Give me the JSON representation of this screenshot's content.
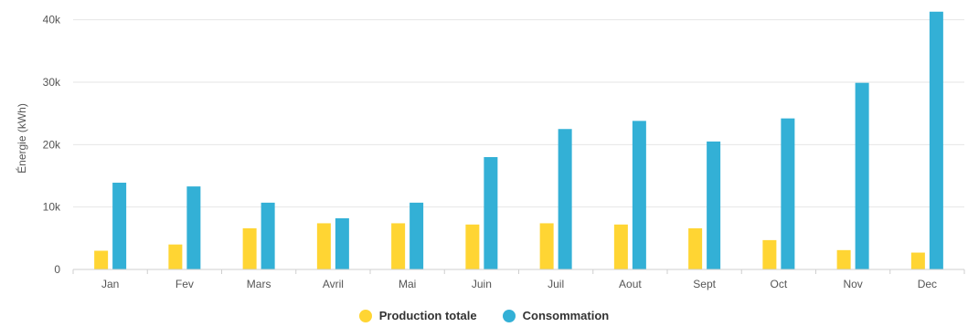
{
  "chart_data": {
    "type": "bar",
    "title": "",
    "xlabel": "",
    "ylabel": "Énergie (kWh)",
    "ylim": [
      0,
      42000
    ],
    "yticks": [
      0,
      10000,
      20000,
      30000,
      40000
    ],
    "ytick_labels": [
      "0",
      "10k",
      "20k",
      "30k",
      "40k"
    ],
    "grid": true,
    "legend_position": "bottom",
    "categories": [
      "Jan",
      "Fev",
      "Mars",
      "Avril",
      "Mai",
      "Juin",
      "Juil",
      "Aout",
      "Sept",
      "Oct",
      "Nov",
      "Dec"
    ],
    "series": [
      {
        "name": "Production totale",
        "color": "#FFD533",
        "values": [
          3000,
          4000,
          6600,
          7400,
          7400,
          7200,
          7400,
          7200,
          6600,
          4700,
          3100,
          2700
        ]
      },
      {
        "name": "Consommation",
        "color": "#33B0D6",
        "values": [
          13900,
          13300,
          10700,
          8200,
          10700,
          18000,
          22500,
          23800,
          20500,
          24200,
          29900,
          41300
        ]
      }
    ]
  }
}
